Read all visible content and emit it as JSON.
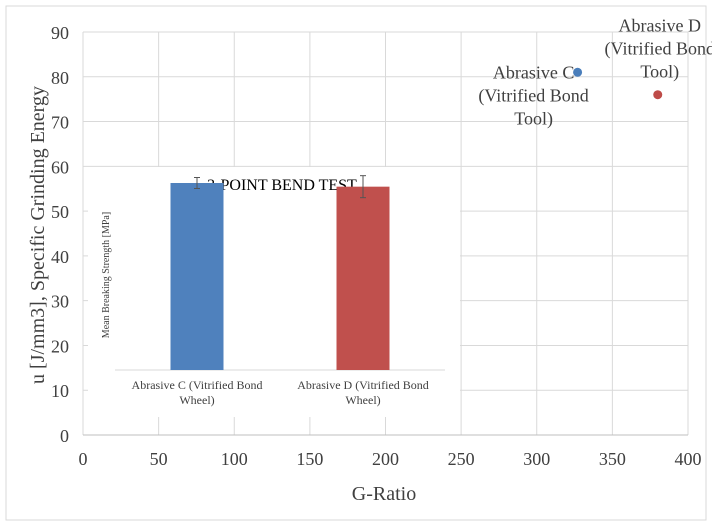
{
  "chart_data": [
    {
      "type": "scatter",
      "ylabel": "u [J/mm3], Specific Grinding Energy",
      "xlabel": "G-Ratio",
      "xlim": [
        0,
        400
      ],
      "ylim": [
        0,
        90
      ],
      "xticks": [
        0,
        50,
        100,
        150,
        200,
        250,
        300,
        350,
        400
      ],
      "yticks": [
        0,
        10,
        20,
        30,
        40,
        50,
        60,
        70,
        80,
        90
      ],
      "grid": true,
      "series": [
        {
          "name": "Abrasive C",
          "x": 327,
          "y": 81,
          "color": "#4a7ebb",
          "label_lines": [
            "Abrasive C",
            "(Vitrified Bond",
            "Tool)"
          ]
        },
        {
          "name": "Abrasive D",
          "x": 380,
          "y": 76,
          "color": "#be4b48",
          "label_lines": [
            "Abrasive D",
            "(Vitrified Bond",
            "Tool)"
          ]
        }
      ]
    },
    {
      "type": "bar",
      "title": "3-POINT BEND TEST",
      "ylabel": "Mean Breaking Strength [MPa]",
      "ylim": [
        0,
        60
      ],
      "grid": false,
      "categories": [
        "Abrasive C (Vitrified Bond Wheel)",
        "Abrasive D (Vitrified Bond Wheel)"
      ],
      "category_lines": [
        [
          "Abrasive C (Vitrified Bond",
          "Wheel)"
        ],
        [
          "Abrasive D (Vitrified Bond",
          "Wheel)"
        ]
      ],
      "values": [
        51,
        50
      ],
      "errors": [
        1.5,
        3
      ],
      "colors": [
        "#4f81bd",
        "#c0504d"
      ]
    }
  ]
}
